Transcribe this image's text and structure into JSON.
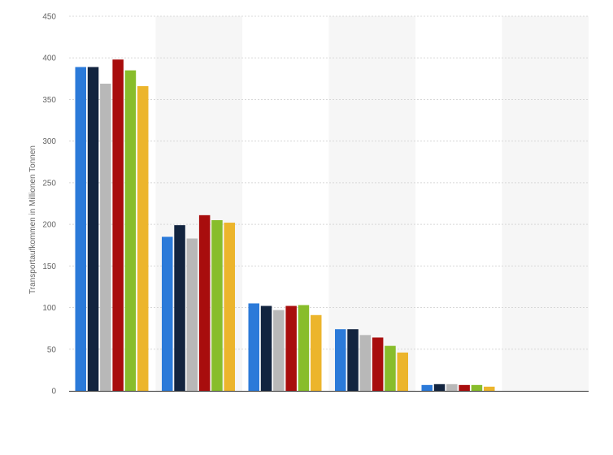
{
  "chart_data": {
    "type": "bar",
    "title": "",
    "xlabel": "",
    "ylabel": "Transportaufkommen in Millionen Tonnen",
    "ylim": [
      0,
      450
    ],
    "yticks": [
      0,
      50,
      100,
      150,
      200,
      250,
      300,
      350,
      400,
      450
    ],
    "grid": true,
    "legend": "none",
    "categories": [
      "",
      "",
      "",
      "",
      "",
      ""
    ],
    "series": [
      {
        "color": "#2b7ad9",
        "values": [
          389,
          185,
          105,
          74,
          7,
          0
        ]
      },
      {
        "color": "#12243f",
        "values": [
          389,
          199,
          102,
          74,
          8,
          0
        ]
      },
      {
        "color": "#b8b8b8",
        "values": [
          369,
          183,
          97,
          67,
          8,
          0
        ]
      },
      {
        "color": "#a80d0d",
        "values": [
          398,
          211,
          102,
          64,
          7,
          0
        ]
      },
      {
        "color": "#88bd2b",
        "values": [
          385,
          205,
          103,
          54,
          7,
          0
        ]
      },
      {
        "color": "#ecb52c",
        "values": [
          366,
          202,
          91,
          46,
          5,
          0
        ]
      }
    ],
    "band_colors": [
      "#ffffff",
      "#f6f6f6"
    ]
  }
}
